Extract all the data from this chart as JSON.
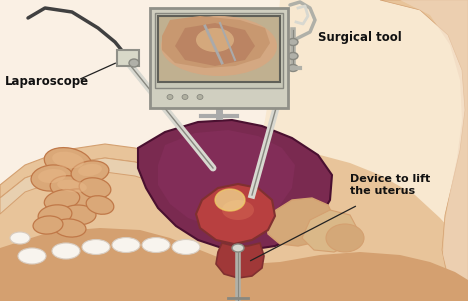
{
  "bg_color": "#faf0e4",
  "skin_light": "#f0d4b0",
  "skin_mid": "#e8c49a",
  "skin_dark": "#d4a070",
  "skin_deep": "#c08858",
  "cavity_color": "#7a2a50",
  "cavity_dark": "#4a1030",
  "intestine_color": "#daa878",
  "intestine_dark": "#c89060",
  "intestine_edge": "#c07848",
  "organ_red": "#c05848",
  "organ_dark": "#803030",
  "organ_maroon": "#982828",
  "uterus_color": "#b84040",
  "bone_color": "#f0e0c0",
  "bone_mid": "#e8d0a8",
  "monitor_body": "#d0d0c0",
  "monitor_screen_bg": "#c8b898",
  "monitor_screen_inner": "#d4a880",
  "instr_light": "#d8d8d0",
  "instr_mid": "#b0b0a8",
  "instr_dark": "#888880",
  "cable_color": "#404040",
  "white_bone": "#f8f4ee",
  "labels": {
    "laparoscope": "Laparoscope",
    "surgical_tool": "Surgical tool",
    "device": "Device to lift\nthe uterus"
  },
  "label_fontsize": 8.5,
  "text_color": "#111111"
}
